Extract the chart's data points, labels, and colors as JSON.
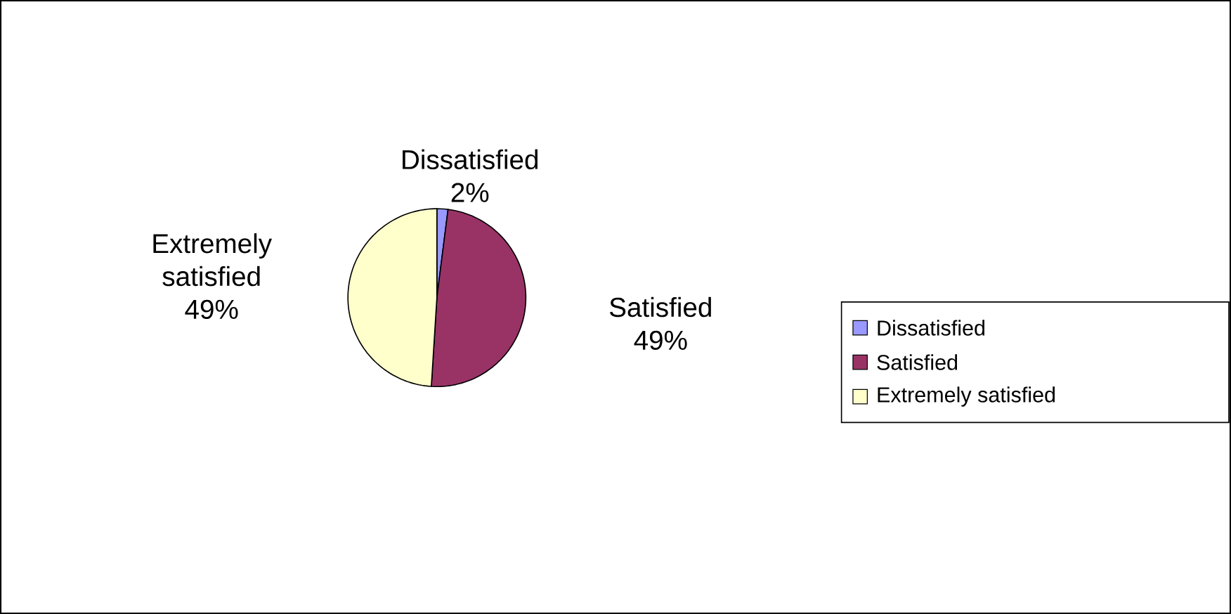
{
  "chart_data": {
    "type": "pie",
    "categories": [
      "Dissatisfied",
      "Satisfied",
      "Extremely satisfied"
    ],
    "values": [
      2,
      49,
      49
    ],
    "value_labels": [
      "2%",
      "49%",
      "49%"
    ],
    "colors": [
      "#9999ff",
      "#993366",
      "#ffffcc"
    ],
    "legend": "right"
  }
}
